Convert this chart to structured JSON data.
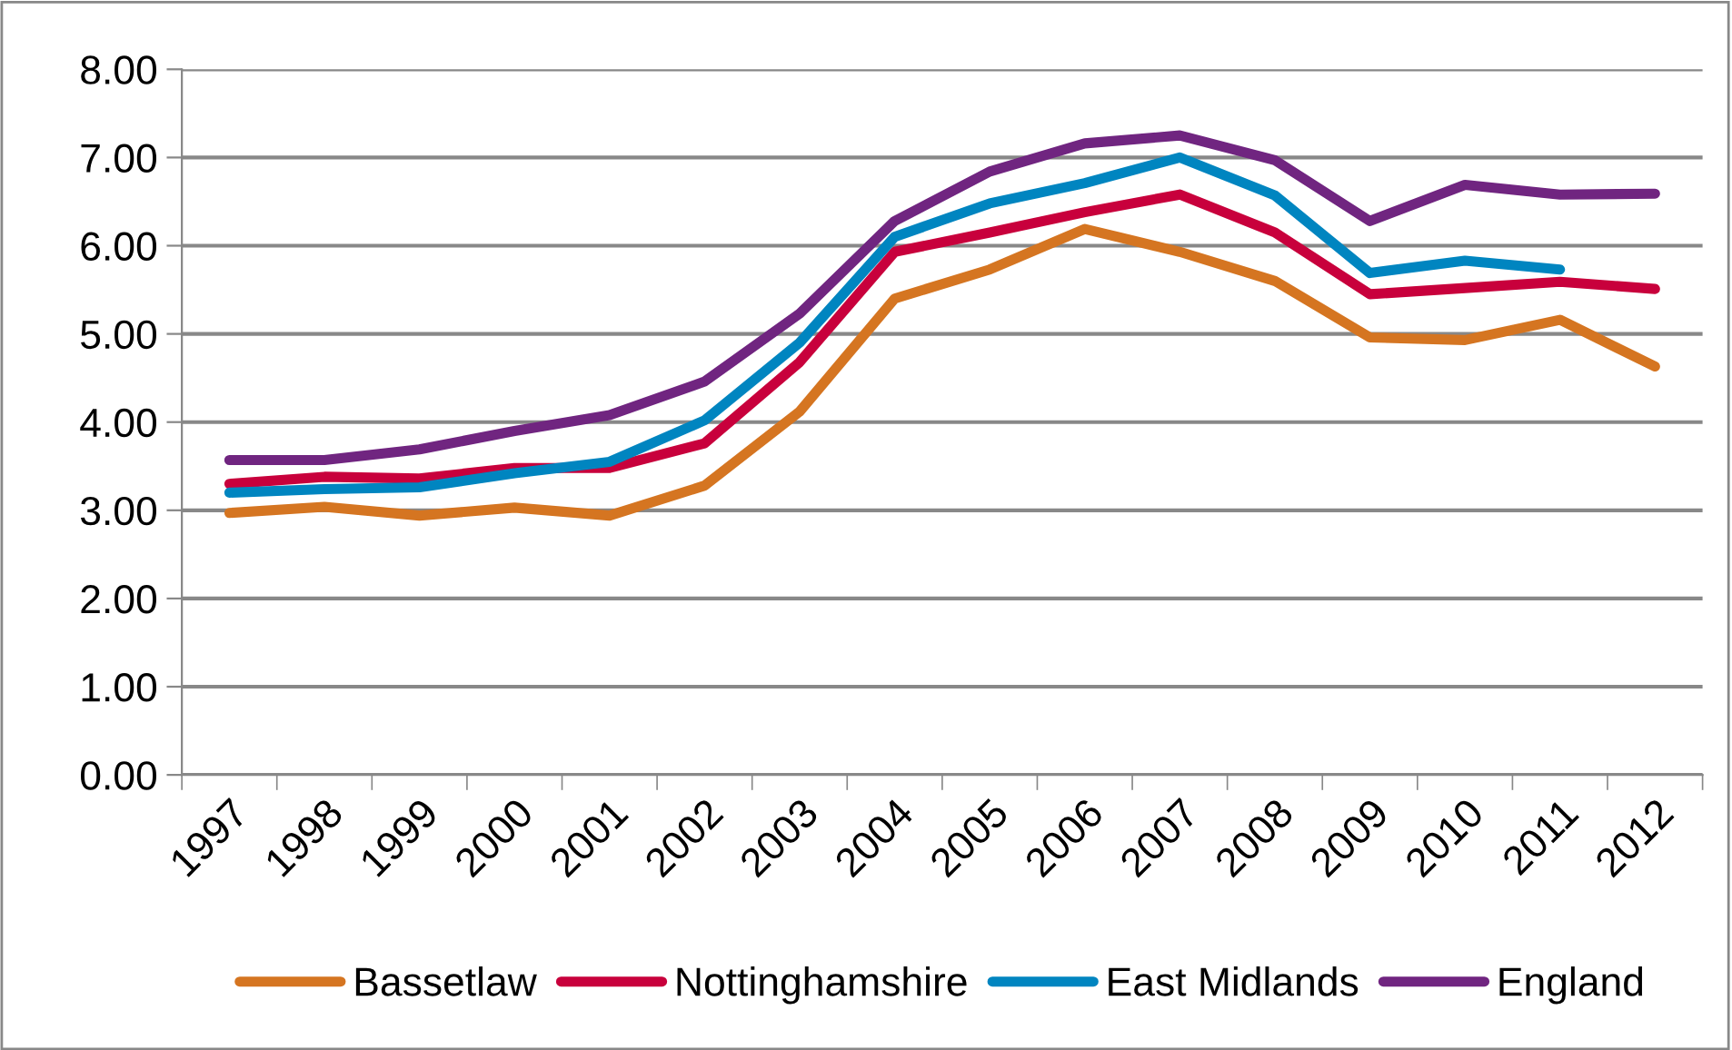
{
  "chart_data": {
    "type": "line",
    "categories": [
      "1997",
      "1998",
      "1999",
      "2000",
      "2001",
      "2002",
      "2003",
      "2004",
      "2005",
      "2006",
      "2007",
      "2008",
      "2009",
      "2010",
      "2011",
      "2012"
    ],
    "series": [
      {
        "name": "Bassetlaw",
        "color": "#d57521",
        "values": [
          2.97,
          3.04,
          2.94,
          3.03,
          2.94,
          3.28,
          4.12,
          5.4,
          5.73,
          6.19,
          5.93,
          5.6,
          4.96,
          4.93,
          5.16,
          4.63
        ]
      },
      {
        "name": "Nottinghamshire",
        "color": "#c8003c",
        "values": [
          3.3,
          3.38,
          3.36,
          3.48,
          3.48,
          3.76,
          4.68,
          5.93,
          6.15,
          6.38,
          6.58,
          6.15,
          5.45,
          5.52,
          5.59,
          5.51
        ]
      },
      {
        "name": "East Midlands",
        "color": "#0085c0",
        "values": [
          3.2,
          3.24,
          3.26,
          3.42,
          3.55,
          4.02,
          4.9,
          6.1,
          6.48,
          6.71,
          7.0,
          6.57,
          5.69,
          5.83,
          5.73,
          null
        ]
      },
      {
        "name": "England",
        "color": "#702580",
        "values": [
          3.57,
          3.57,
          3.69,
          3.9,
          4.08,
          4.46,
          5.23,
          6.28,
          6.84,
          7.16,
          7.25,
          6.97,
          6.28,
          6.69,
          6.58,
          6.59
        ]
      }
    ],
    "ylim": [
      0,
      8
    ],
    "yticks": [
      {
        "value": 0,
        "label": "0.00"
      },
      {
        "value": 1,
        "label": "1.00"
      },
      {
        "value": 2,
        "label": "2.00"
      },
      {
        "value": 3,
        "label": "3.00"
      },
      {
        "value": 4,
        "label": "4.00"
      },
      {
        "value": 5,
        "label": "5.00"
      },
      {
        "value": 6,
        "label": "6.00"
      },
      {
        "value": 7,
        "label": "7.00"
      },
      {
        "value": 8,
        "label": "8.00"
      }
    ],
    "grid": "y",
    "legend": "bottom",
    "marker": "none",
    "line_style": "solid"
  }
}
